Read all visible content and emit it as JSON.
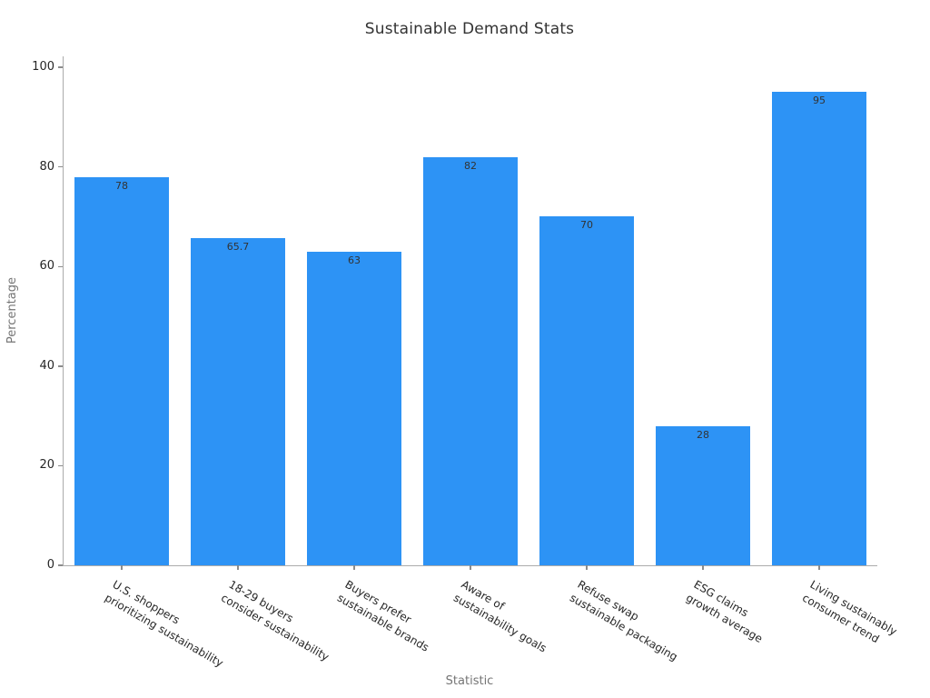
{
  "chart_data": {
    "type": "bar",
    "title": "Sustainable Demand Stats",
    "xlabel": "Statistic",
    "ylabel": "Percentage",
    "categories": [
      "U.S. shoppers\nprioritizing sustainability",
      "18-29 buyers\nconsider sustainability",
      "Buyers prefer\nsustainable brands",
      "Aware of\nsustainability goals",
      "Refuse swap\nsustainable packaging",
      "ESG claims\ngrowth average",
      "Living sustainably\nconsumer trend"
    ],
    "values": [
      78,
      65.7,
      63,
      82,
      70,
      28,
      95
    ],
    "bar_value_labels": [
      "78",
      "65.7",
      "63",
      "82",
      "70",
      "28",
      "95"
    ],
    "yticks": [
      0,
      20,
      40,
      60,
      80,
      100
    ],
    "ylim": [
      0,
      102.2
    ],
    "grid": false,
    "legend_position": "none",
    "bar_color": "#2d93f5",
    "label_rotation_deg": 30
  }
}
